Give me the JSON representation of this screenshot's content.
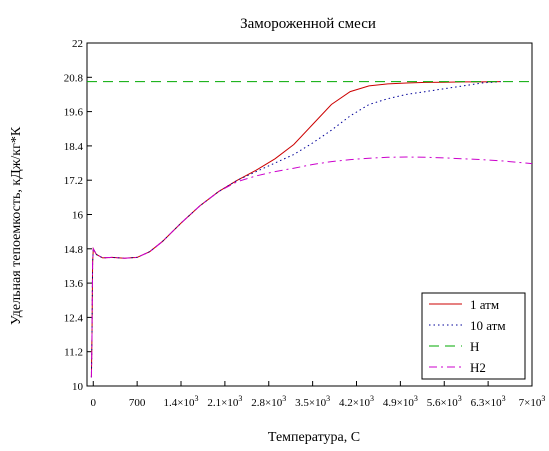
{
  "chart_data": {
    "type": "line",
    "title": "Замороженной смеси",
    "xlabel": "Температура, С",
    "ylabel": "Удельная тепоемкость, кДж/кг*К",
    "xlim": [
      -100,
      7000
    ],
    "ylim": [
      10,
      22
    ],
    "x_ticks": [
      {
        "value": 0,
        "label": "0"
      },
      {
        "value": 700,
        "label": "700"
      },
      {
        "value": 1400,
        "label": "1.4×10",
        "exp": "3"
      },
      {
        "value": 2100,
        "label": "2.1×10",
        "exp": "3"
      },
      {
        "value": 2800,
        "label": "2.8×10",
        "exp": "3"
      },
      {
        "value": 3500,
        "label": "3.5×10",
        "exp": "3"
      },
      {
        "value": 4200,
        "label": "4.2×10",
        "exp": "3"
      },
      {
        "value": 4900,
        "label": "4.9×10",
        "exp": "3"
      },
      {
        "value": 5600,
        "label": "5.6×10",
        "exp": "3"
      },
      {
        "value": 6300,
        "label": "6.3×10",
        "exp": "3"
      },
      {
        "value": 7000,
        "label": "7×10",
        "exp": "3"
      }
    ],
    "y_ticks": [
      "10",
      "11.2",
      "12.4",
      "13.6",
      "14.8",
      "16",
      "17.2",
      "18.4",
      "19.6",
      "20.8",
      "22"
    ],
    "y_tick_values": [
      10,
      11.2,
      12.4,
      13.6,
      14.8,
      16,
      17.2,
      18.4,
      19.6,
      20.8,
      22
    ],
    "grid": false,
    "legend_position": "bottom-right",
    "series": [
      {
        "name": "1 атм",
        "color": "#cc0000",
        "dash": "solid",
        "x": [
          -30,
          -20,
          -10,
          0,
          50,
          150,
          300,
          500,
          700,
          900,
          1100,
          1400,
          1700,
          2000,
          2300,
          2600,
          2900,
          3200,
          3500,
          3800,
          4100,
          4400,
          4700,
          5000,
          5300,
          5600,
          5900,
          6200,
          6500
        ],
        "y": [
          10.3,
          11.8,
          14.3,
          14.8,
          14.6,
          14.48,
          14.5,
          14.47,
          14.5,
          14.7,
          15.05,
          15.7,
          16.3,
          16.8,
          17.2,
          17.55,
          17.95,
          18.45,
          19.15,
          19.85,
          20.3,
          20.5,
          20.57,
          20.6,
          20.62,
          20.63,
          20.64,
          20.64,
          20.65
        ]
      },
      {
        "name": "10 атм",
        "color": "#000099",
        "dash": "dotted",
        "x": [
          -30,
          -20,
          -10,
          0,
          50,
          150,
          300,
          500,
          700,
          900,
          1100,
          1400,
          1700,
          2000,
          2300,
          2600,
          2900,
          3200,
          3500,
          3800,
          4100,
          4400,
          4700,
          5000,
          5300,
          5600,
          5900,
          6200,
          6500
        ],
        "y": [
          10.3,
          11.8,
          14.3,
          14.8,
          14.6,
          14.48,
          14.5,
          14.47,
          14.5,
          14.7,
          15.05,
          15.7,
          16.3,
          16.8,
          17.2,
          17.5,
          17.8,
          18.1,
          18.5,
          18.95,
          19.45,
          19.85,
          20.05,
          20.2,
          20.3,
          20.4,
          20.5,
          20.6,
          20.65
        ]
      },
      {
        "name": "H",
        "color": "#00aa00",
        "dash": "dashed",
        "x": [
          -100,
          7000
        ],
        "y": [
          20.65,
          20.65
        ]
      },
      {
        "name": "H2",
        "color": "#cc00cc",
        "dash": "dashdot",
        "x": [
          -30,
          -20,
          -10,
          0,
          50,
          150,
          300,
          500,
          700,
          900,
          1100,
          1400,
          1700,
          2000,
          2300,
          2600,
          2900,
          3200,
          3500,
          3800,
          4100,
          4400,
          4700,
          5000,
          5300,
          5600,
          5900,
          6200,
          6500,
          6800,
          7000
        ],
        "y": [
          10.3,
          11.8,
          14.3,
          14.8,
          14.6,
          14.48,
          14.5,
          14.47,
          14.5,
          14.7,
          15.05,
          15.7,
          16.3,
          16.8,
          17.15,
          17.35,
          17.5,
          17.62,
          17.75,
          17.85,
          17.92,
          17.97,
          18.0,
          18.01,
          18.0,
          17.98,
          17.95,
          17.92,
          17.88,
          17.82,
          17.78
        ]
      }
    ]
  }
}
